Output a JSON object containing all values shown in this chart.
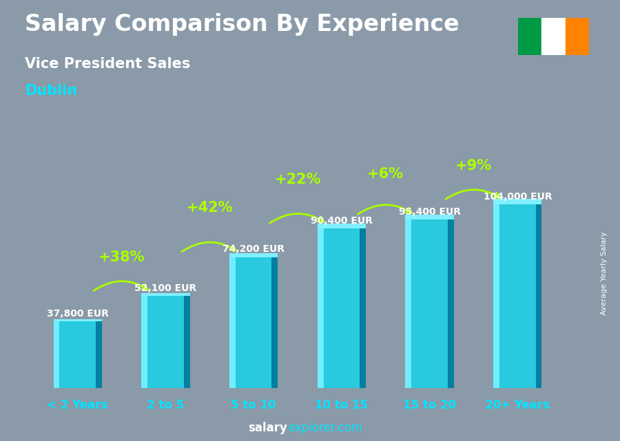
{
  "title": "Salary Comparison By Experience",
  "subtitle": "Vice President Sales",
  "city": "Dublin",
  "ylabel": "Average Yearly Salary",
  "categories": [
    "< 2 Years",
    "2 to 5",
    "5 to 10",
    "10 to 15",
    "15 to 20",
    "20+ Years"
  ],
  "values": [
    37800,
    52100,
    74200,
    90400,
    95400,
    104000
  ],
  "value_labels": [
    "37,800 EUR",
    "52,100 EUR",
    "74,200 EUR",
    "90,400 EUR",
    "95,400 EUR",
    "104,000 EUR"
  ],
  "pct_labels": [
    "+38%",
    "+42%",
    "+22%",
    "+6%",
    "+9%"
  ],
  "bar_color_face": "#29c9e0",
  "bar_color_light": "#70eeff",
  "bar_color_dark": "#007fa0",
  "background_color": "#8a9aa8",
  "title_color": "#ffffff",
  "subtitle_color": "#ffffff",
  "city_color": "#00e5ff",
  "pct_color": "#aaff00",
  "value_color": "#ffffff",
  "xlabel_color": "#00e5ff",
  "title_fontsize": 24,
  "subtitle_fontsize": 15,
  "city_fontsize": 15,
  "pct_fontsize": 15,
  "value_fontsize": 10,
  "xlabel_fontsize": 12,
  "footer_fontsize": 12,
  "ylim": [
    0,
    130000
  ],
  "flag_green": "#009A44",
  "flag_white": "#FFFFFF",
  "flag_orange": "#FF8200",
  "arc_heights": [
    22000,
    28000,
    28000,
    26000,
    22000
  ],
  "arc_rads": [
    -0.35,
    -0.35,
    -0.35,
    -0.35,
    -0.35
  ]
}
